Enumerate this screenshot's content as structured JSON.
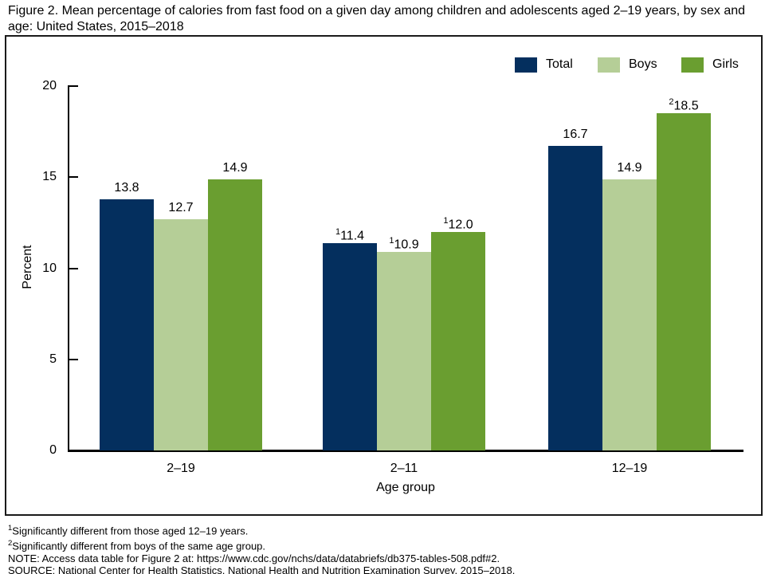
{
  "title": "Figure 2. Mean percentage of calories from fast food on a given day among children and adolescents aged 2–19 years, by sex and age: United States, 2015–2018",
  "chart_data": {
    "type": "bar",
    "title": "Figure 2. Mean percentage of calories from fast food on a given day among children and adolescents aged 2–19 years, by sex and age: United States, 2015–2018",
    "categories": [
      "2–19",
      "2–11",
      "12–19"
    ],
    "series": [
      {
        "name": "Total",
        "color": "#042f5e",
        "values": [
          13.8,
          11.4,
          16.7
        ],
        "labels": [
          {
            "sup": "",
            "text": "13.8"
          },
          {
            "sup": "1",
            "text": "11.4"
          },
          {
            "sup": "",
            "text": "16.7"
          }
        ]
      },
      {
        "name": "Boys",
        "color": "#b5ce97",
        "values": [
          12.7,
          10.9,
          14.9
        ],
        "labels": [
          {
            "sup": "",
            "text": "12.7"
          },
          {
            "sup": "1",
            "text": "10.9"
          },
          {
            "sup": "",
            "text": "14.9"
          }
        ]
      },
      {
        "name": "Girls",
        "color": "#6a9e30",
        "values": [
          14.9,
          12.0,
          18.5
        ],
        "labels": [
          {
            "sup": "",
            "text": "14.9"
          },
          {
            "sup": "1",
            "text": "12.0"
          },
          {
            "sup": "2",
            "text": "18.5"
          }
        ]
      }
    ],
    "xlabel": "Age group",
    "ylabel": "Percent",
    "ylim": [
      0,
      20
    ],
    "yticks": [
      0,
      5,
      10,
      15,
      20
    ],
    "legend_position": "top-right",
    "grid": false,
    "colors": {
      "axis": "#000000",
      "frame": "#1a1a1a",
      "text": "#000000"
    }
  },
  "footnotes": [
    {
      "sup": "1",
      "text": "Significantly different from those aged 12–19 years."
    },
    {
      "sup": "2",
      "text": "Significantly different from boys of the same age group."
    },
    {
      "sup": "",
      "text": "NOTE: Access data table for Figure 2 at: https://www.cdc.gov/nchs/data/databriefs/db375-tables-508.pdf#2."
    },
    {
      "sup": "",
      "text": "SOURCE: National Center for Health Statistics, National Health and Nutrition Examination Survey, 2015–2018."
    }
  ]
}
